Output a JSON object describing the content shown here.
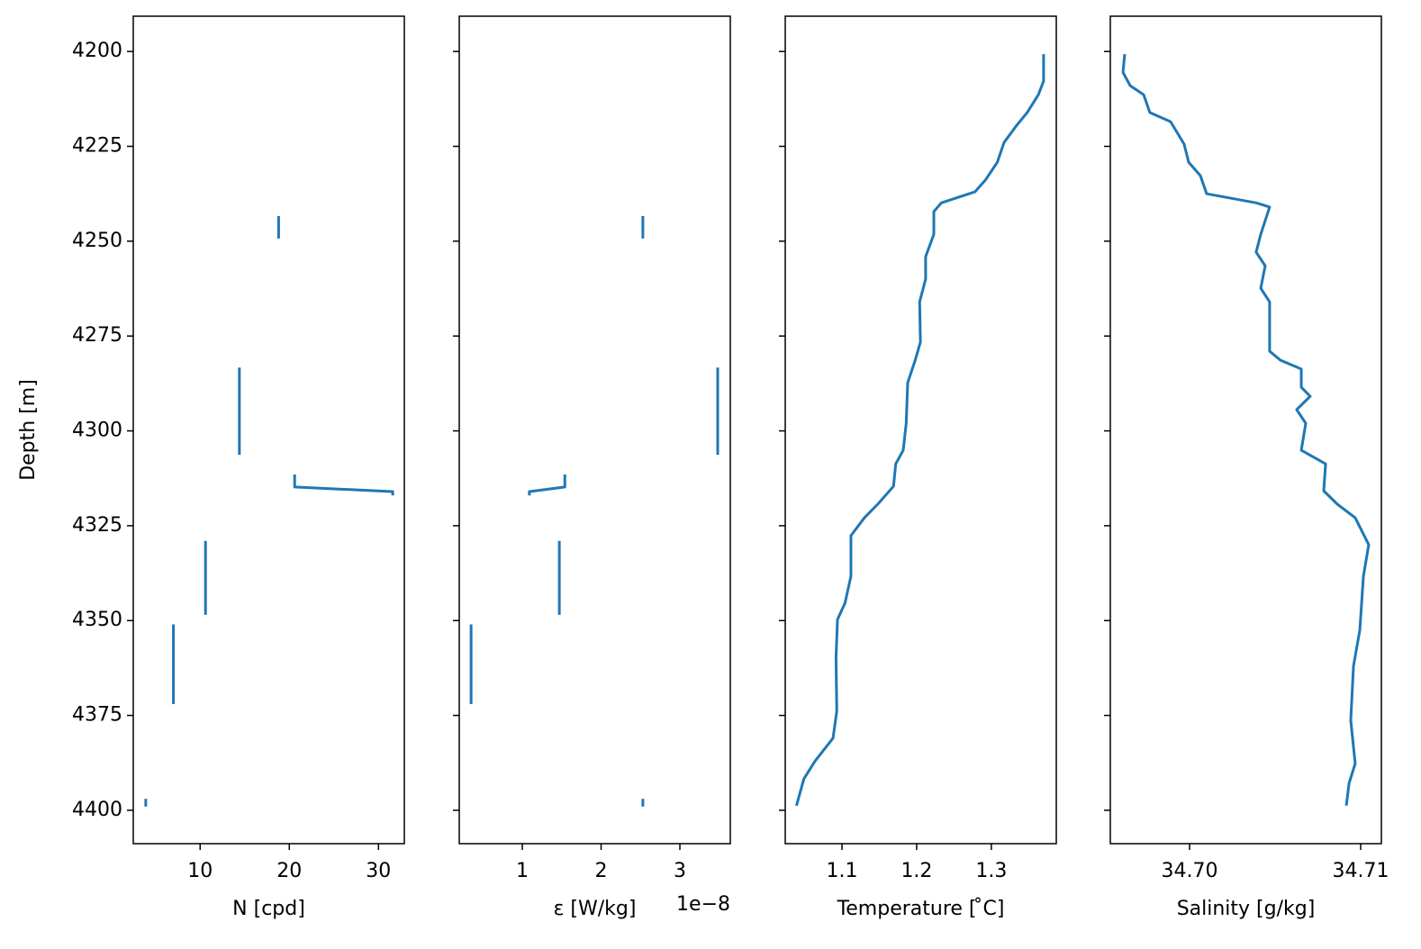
{
  "chart_data": [
    {
      "type": "line",
      "xlabel": "N [cpd]",
      "ylabel": "Depth [m]",
      "color": "#1f77b4",
      "xlim": [
        2.5,
        32.9
      ],
      "xticks": [
        10,
        20,
        30
      ],
      "ylim": [
        4408.8,
        4190.7
      ],
      "yticks": [
        4200,
        4225,
        4250,
        4275,
        4300,
        4325,
        4350,
        4375,
        4400
      ],
      "depth": [
        4243.4,
        4249.3,
        null,
        4283.3,
        4306.3,
        null,
        4311.5,
        4314.8,
        4316.0,
        4317.0,
        null,
        4329.0,
        4348.5,
        null,
        4351.0,
        4372.0,
        null,
        4397.0,
        4399.0
      ],
      "values": [
        18.8,
        18.8,
        null,
        14.4,
        14.4,
        null,
        20.6,
        20.6,
        31.6,
        31.6,
        null,
        10.6,
        10.6,
        null,
        7.0,
        7.0,
        null,
        3.9,
        3.9
      ]
    },
    {
      "type": "line",
      "xlabel": "ε [W/kg]",
      "offset_label": "1e−8",
      "color": "#1f77b4",
      "sharey": true,
      "xlim": [
        0.2,
        3.64
      ],
      "xticks": [
        1,
        2,
        3
      ],
      "depth": [
        4243.4,
        4249.3,
        null,
        4283.3,
        4306.3,
        null,
        4311.5,
        4314.8,
        4316.0,
        4317.0,
        null,
        4329.0,
        4348.5,
        null,
        4351.0,
        4372.0,
        null,
        4397.0,
        4399.0
      ],
      "values": [
        2.53,
        2.53,
        null,
        3.48,
        3.48,
        null,
        1.54,
        1.54,
        1.09,
        1.09,
        null,
        1.47,
        1.47,
        null,
        0.35,
        0.35,
        null,
        2.53,
        2.53
      ]
    },
    {
      "type": "line",
      "xlabel": "Temperature [$^\\circ$C]",
      "xlabel_display": "Temperature [ ̊C]",
      "color": "#1f77b4",
      "sharey": true,
      "xlim": [
        1.024,
        1.387
      ],
      "xticks": [
        1.1,
        1.2,
        1.3
      ],
      "depth": [
        4200.7,
        4207.8,
        4211.4,
        4216.1,
        4219.7,
        4224.0,
        4229.2,
        4233.9,
        4237.0,
        4239.9,
        4242.2,
        4248.2,
        4254.1,
        4260.0,
        4266.0,
        4276.6,
        4281.4,
        4287.3,
        4298.0,
        4305.1,
        4308.7,
        4314.6,
        4319.3,
        4322.9,
        4327.6,
        4338.3,
        4345.4,
        4349.7,
        4359.7,
        4373.9,
        4381.0,
        4387.0,
        4391.7,
        4398.8
      ],
      "values": [
        1.37,
        1.37,
        1.363,
        1.348,
        1.333,
        1.317,
        1.308,
        1.292,
        1.278,
        1.233,
        1.223,
        1.223,
        1.212,
        1.212,
        1.204,
        1.205,
        1.198,
        1.188,
        1.186,
        1.182,
        1.172,
        1.169,
        1.148,
        1.13,
        1.112,
        1.112,
        1.104,
        1.094,
        1.092,
        1.093,
        1.088,
        1.064,
        1.049,
        1.039
      ]
    },
    {
      "type": "line",
      "xlabel": "Salinity [g/kg]",
      "color": "#1f77b4",
      "sharey": true,
      "xlim": [
        34.69537,
        34.71121
      ],
      "xticks": [
        {
          "value": 34.7,
          "label": "34.70"
        },
        34.71
      ],
      "depth": [
        4200.7,
        4205.5,
        4209.0,
        4211.4,
        4216.1,
        4218.5,
        4224.4,
        4229.2,
        4232.7,
        4237.5,
        4239.9,
        4241.0,
        4248.2,
        4252.9,
        4256.5,
        4262.4,
        4266.0,
        4279.0,
        4281.4,
        4283.7,
        4288.5,
        4290.9,
        4294.4,
        4298.0,
        4305.1,
        4308.7,
        4315.8,
        4319.3,
        4322.9,
        4330.0,
        4338.3,
        4352.5,
        4362.0,
        4376.3,
        4387.7,
        4392.9,
        4398.8
      ],
      "values": [
        34.69621,
        34.69611,
        34.69653,
        34.69732,
        34.69768,
        34.69889,
        34.69968,
        34.69995,
        34.70063,
        34.701,
        34.7039,
        34.70468,
        34.70416,
        34.70389,
        34.70442,
        34.70416,
        34.70468,
        34.70468,
        34.70532,
        34.70653,
        34.70653,
        34.70705,
        34.70626,
        34.70679,
        34.70653,
        34.70795,
        34.70784,
        34.70863,
        34.70968,
        34.71047,
        34.71016,
        34.70995,
        34.70958,
        34.70942,
        34.70968,
        34.70932,
        34.70916
      ]
    }
  ]
}
